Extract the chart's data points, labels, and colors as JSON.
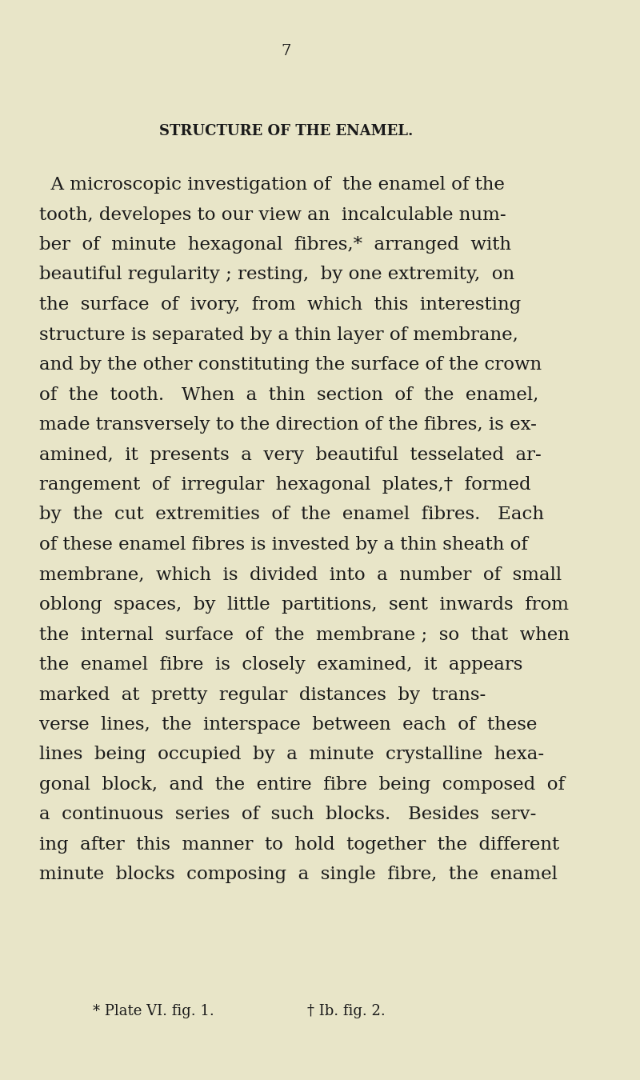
{
  "background_color": "#e8e5c8",
  "page_number": "7",
  "title": "STRUCTURE OF THE ENAMEL.",
  "body_lines": [
    "  A microscopic investigation of  the enamel of the",
    "tooth, developes to our view an  incalculable num-",
    "ber  of  minute  hexagonal  fibres,*  arranged  with",
    "beautiful regularity ; resting,  by one extremity,  on",
    "the  surface  of  ivory,  from ·which  this  interesting",
    "structure is separated by a thin layer of membrane,",
    "and by the other constituting the surface of the crown",
    "of  the  tooth.   When  a  thin  section  of  the  enamel,",
    "made transversely to the direction of the fibres, is ex-",
    "amined,  it  presents  a  very  beautiful  tesselated  ar-",
    "rangement  of  irregular  hexagonal  plates,†  formed",
    "by  the  cut  extremities  of  the  enamel  fibres.   Each",
    "of these enamel fibres is invested by a thin sheath of",
    "membrane,  which  is  divided  into  a  number  of  small",
    "oblong  spaces,  by  little  partitions,  sent  inwards  from",
    "the  internal  surface  of  the  membrane ;  so  that  when",
    "the  enamel  fibre  is  closely  examined,  it  appears",
    "marked  at  pretty  regular  distances  by  trans-",
    "verse  lines,  the  interspace  between  each  of  these",
    "lines  being  occupied  by  a  minute  crystalline  hexa-",
    "gonal  block,  and  the  entire  fibre  being  composed  of",
    "a  continuous  series  of  such  blocks.   Besides  serv-",
    "ing  after  this  manner  to  hold  together  the  different",
    "minute  blocks  composing  a  single  fibre,  the  enamel"
  ],
  "footnote_left": "* Plate VI. fig. 1.",
  "footnote_right": "† Ib. fig. 2.",
  "text_color": "#1a1a1a",
  "title_fontsize": 13,
  "body_fontsize": 16.5,
  "page_num_fontsize": 14,
  "footnote_fontsize": 13
}
